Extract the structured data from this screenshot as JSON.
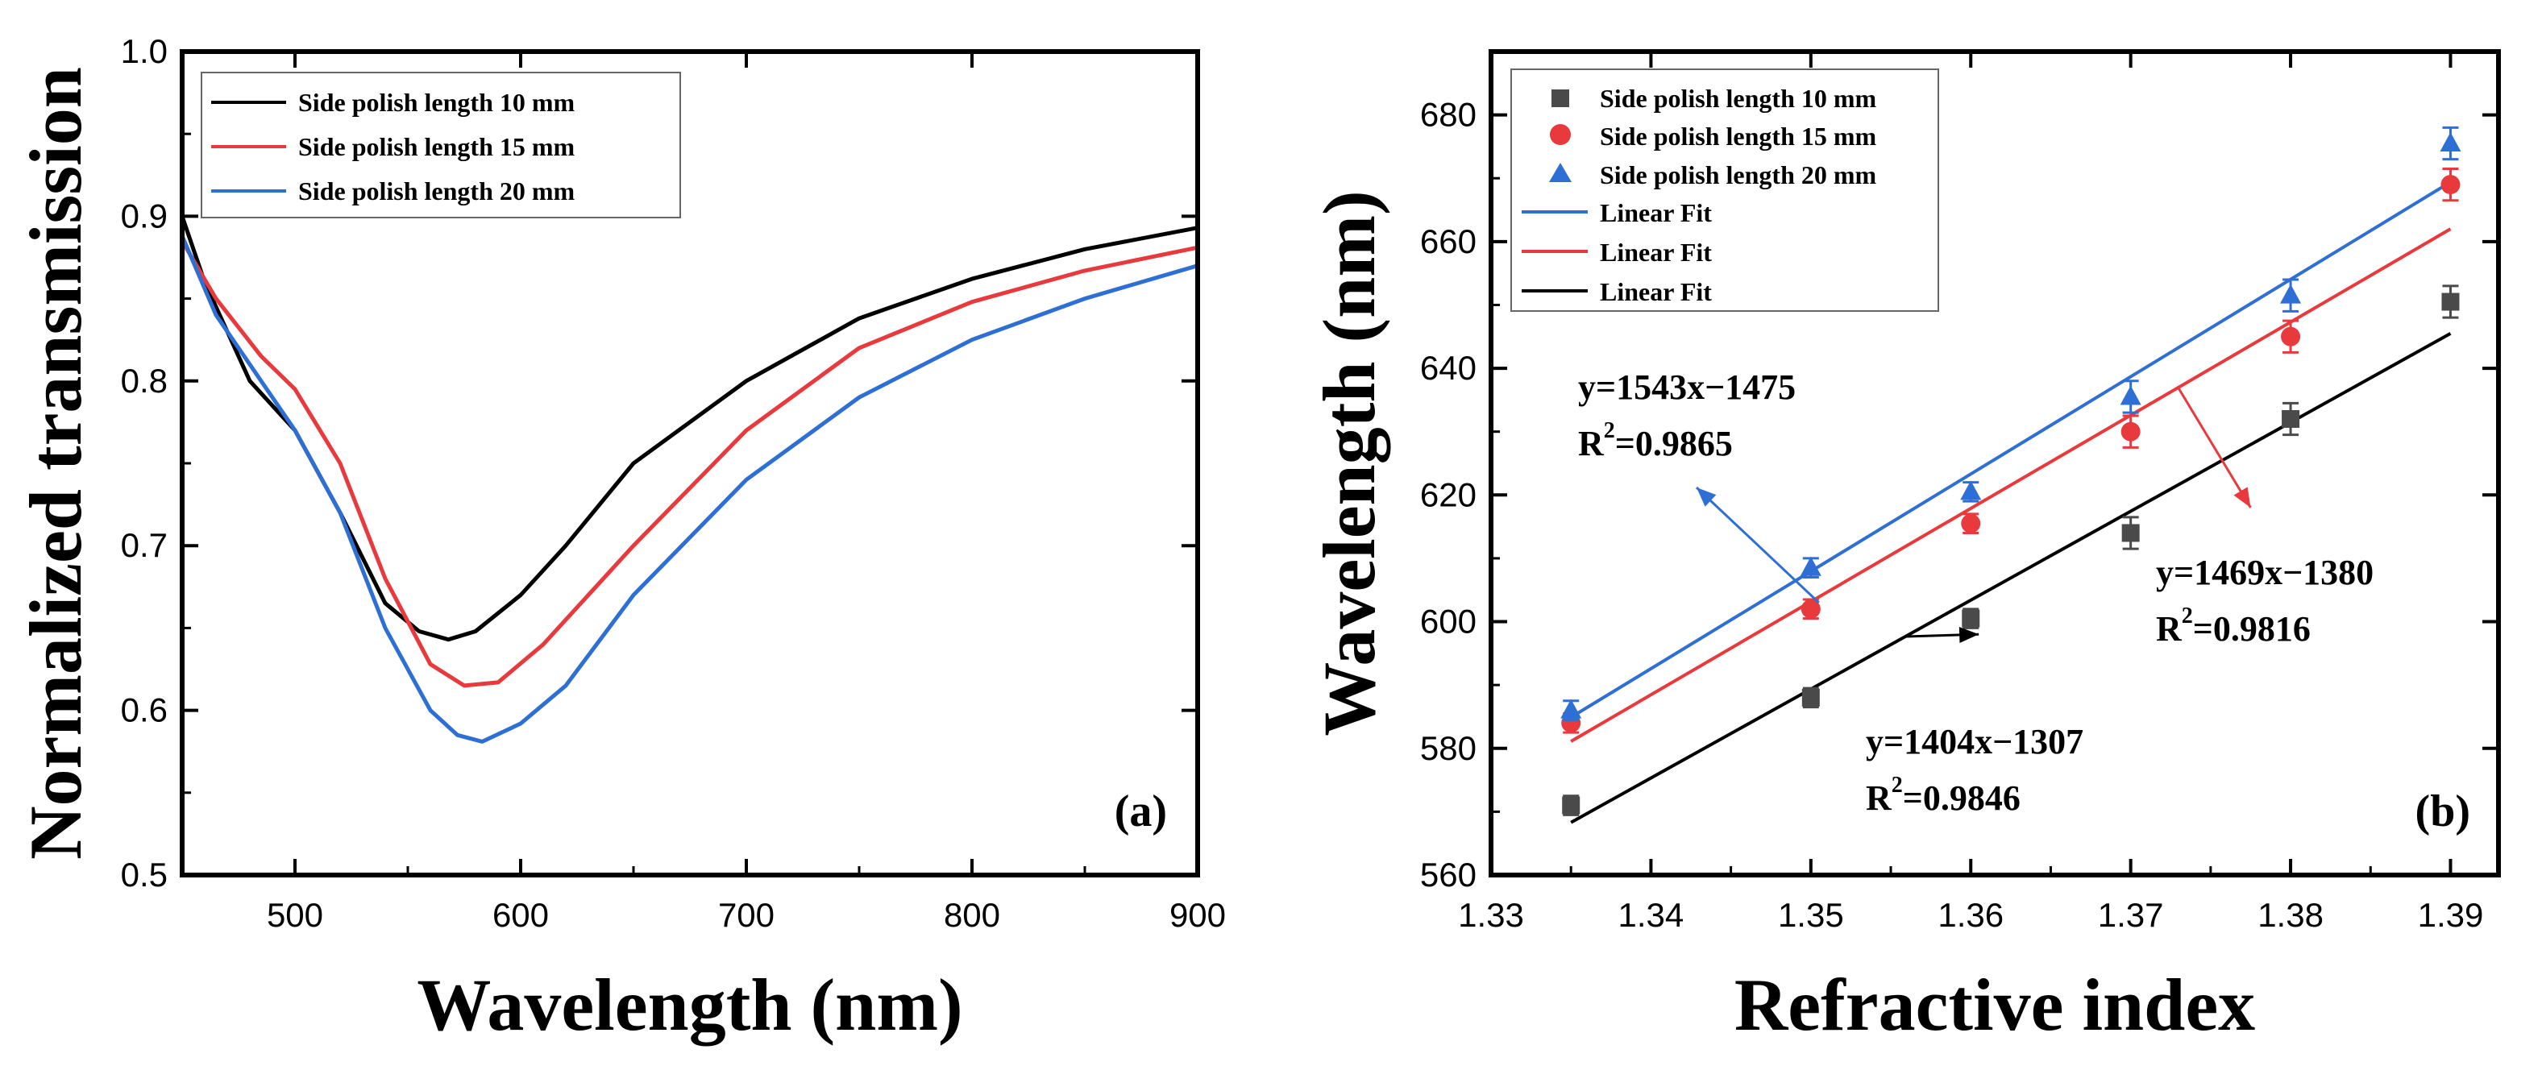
{
  "chart_data": [
    {
      "type": "line",
      "panel_label": "(a)",
      "xlabel": "Wavelength (nm)",
      "ylabel": "Normalized transmission",
      "xlim": [
        450,
        900
      ],
      "ylim": [
        0.5,
        1.0
      ],
      "xticks": [
        500,
        600,
        700,
        800,
        900
      ],
      "xtick_labels": [
        "500",
        "600",
        "700",
        "800",
        "900"
      ],
      "yticks": [
        0.5,
        0.6,
        0.7,
        0.8,
        0.9,
        1.0
      ],
      "ytick_labels": [
        "0.5",
        "0.6",
        "0.7",
        "0.8",
        "0.9",
        "1.0"
      ],
      "legend_position": "top-left",
      "series": [
        {
          "name": "Side polish length 10 mm",
          "color": "#000000",
          "points": [
            [
              450,
              0.9
            ],
            [
              460,
              0.86
            ],
            [
              480,
              0.8
            ],
            [
              500,
              0.77
            ],
            [
              520,
              0.72
            ],
            [
              540,
              0.665
            ],
            [
              555,
              0.648
            ],
            [
              568,
              0.643
            ],
            [
              580,
              0.648
            ],
            [
              600,
              0.67
            ],
            [
              620,
              0.7
            ],
            [
              650,
              0.75
            ],
            [
              700,
              0.8
            ],
            [
              750,
              0.838
            ],
            [
              800,
              0.862
            ],
            [
              850,
              0.88
            ],
            [
              900,
              0.893
            ]
          ]
        },
        {
          "name": "Side polish length 15 mm",
          "color": "#e8393d",
          "points": [
            [
              450,
              0.885
            ],
            [
              465,
              0.85
            ],
            [
              485,
              0.815
            ],
            [
              500,
              0.795
            ],
            [
              520,
              0.75
            ],
            [
              540,
              0.68
            ],
            [
              560,
              0.628
            ],
            [
              575,
              0.615
            ],
            [
              590,
              0.617
            ],
            [
              610,
              0.64
            ],
            [
              650,
              0.7
            ],
            [
              700,
              0.77
            ],
            [
              750,
              0.82
            ],
            [
              800,
              0.848
            ],
            [
              850,
              0.867
            ],
            [
              900,
              0.881
            ]
          ]
        },
        {
          "name": "Side polish length 20 mm",
          "color": "#2e6fd6",
          "points": [
            [
              450,
              0.888
            ],
            [
              465,
              0.84
            ],
            [
              485,
              0.8
            ],
            [
              500,
              0.77
            ],
            [
              520,
              0.72
            ],
            [
              540,
              0.65
            ],
            [
              560,
              0.6
            ],
            [
              572,
              0.585
            ],
            [
              583,
              0.581
            ],
            [
              600,
              0.592
            ],
            [
              620,
              0.615
            ],
            [
              650,
              0.67
            ],
            [
              700,
              0.74
            ],
            [
              750,
              0.79
            ],
            [
              800,
              0.825
            ],
            [
              850,
              0.85
            ],
            [
              900,
              0.87
            ]
          ]
        }
      ]
    },
    {
      "type": "scatter",
      "panel_label": "(b)",
      "xlabel": "Refractive index",
      "ylabel": "Wavelength (nm)",
      "xlim": [
        1.33,
        1.393
      ],
      "ylim": [
        560,
        690
      ],
      "xticks": [
        1.33,
        1.34,
        1.35,
        1.36,
        1.37,
        1.38,
        1.39
      ],
      "xtick_labels": [
        "1.33",
        "1.34",
        "1.35",
        "1.36",
        "1.37",
        "1.38",
        "1.39"
      ],
      "yticks": [
        560,
        580,
        600,
        620,
        640,
        660,
        680
      ],
      "ytick_labels": [
        "560",
        "580",
        "600",
        "620",
        "640",
        "660",
        "680"
      ],
      "legend_position": "top-left",
      "series": [
        {
          "name": "Side polish length 10 mm",
          "marker": "square",
          "color": "#4a4a4a",
          "x": [
            1.335,
            1.35,
            1.36,
            1.37,
            1.38,
            1.39
          ],
          "y": [
            571,
            588,
            600.5,
            614,
            632,
            650.5
          ],
          "err": [
            1.5,
            1.5,
            1.5,
            2.5,
            2.5,
            2.5
          ]
        },
        {
          "name": "Side polish length 15 mm",
          "marker": "circle",
          "color": "#e8393d",
          "x": [
            1.335,
            1.35,
            1.36,
            1.37,
            1.38,
            1.39
          ],
          "y": [
            584,
            602,
            615.5,
            630,
            645,
            669
          ],
          "err": [
            1.5,
            1.5,
            1.5,
            2.5,
            2.5,
            2.5
          ]
        },
        {
          "name": "Side polish length 20 mm",
          "marker": "triangle",
          "color": "#2e6fd6",
          "x": [
            1.335,
            1.35,
            1.36,
            1.37,
            1.38,
            1.39
          ],
          "y": [
            586,
            608.5,
            620.5,
            635.5,
            651.5,
            675.5
          ],
          "err": [
            1.5,
            1.5,
            1.5,
            2.5,
            2.5,
            2.5
          ]
        }
      ],
      "fits": [
        {
          "name": "Linear Fit",
          "color": "#2e6fd6",
          "x": [
            1.335,
            1.39
          ],
          "y": [
            584.9,
            669.4
          ]
        },
        {
          "name": "Linear Fit",
          "color": "#e8393d",
          "x": [
            1.335,
            1.39
          ],
          "y": [
            581.1,
            662.0
          ]
        },
        {
          "name": "Linear Fit",
          "color": "#000000",
          "x": [
            1.335,
            1.39
          ],
          "y": [
            568.3,
            645.5
          ]
        }
      ],
      "annotations": [
        {
          "equation": "y=1543x−1475",
          "r2_prefix": "R",
          "r2_sup": "2",
          "r2_value": "=0.9865",
          "color": "#2e6fd6",
          "arrow_to": [
            1.348,
            606
          ]
        },
        {
          "equation": "y=1469x−1380",
          "r2_prefix": "R",
          "r2_sup": "2",
          "r2_value": "=0.9816",
          "color": "#e8393d",
          "arrow_to": [
            1.3775,
            618
          ]
        },
        {
          "equation": "y=1404x−1307",
          "r2_prefix": "R",
          "r2_sup": "2",
          "r2_value": "=0.9846",
          "color": "#000000",
          "arrow_to": [
            1.3605,
            598
          ]
        }
      ]
    }
  ]
}
